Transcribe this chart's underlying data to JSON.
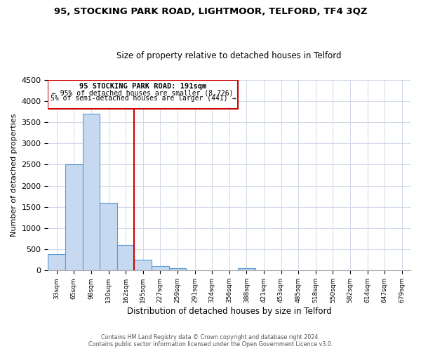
{
  "title": "95, STOCKING PARK ROAD, LIGHTMOOR, TELFORD, TF4 3QZ",
  "subtitle": "Size of property relative to detached houses in Telford",
  "xlabel": "Distribution of detached houses by size in Telford",
  "ylabel": "Number of detached properties",
  "bar_labels": [
    "33sqm",
    "65sqm",
    "98sqm",
    "130sqm",
    "162sqm",
    "195sqm",
    "227sqm",
    "259sqm",
    "291sqm",
    "324sqm",
    "356sqm",
    "388sqm",
    "421sqm",
    "453sqm",
    "485sqm",
    "518sqm",
    "550sqm",
    "582sqm",
    "614sqm",
    "647sqm",
    "679sqm"
  ],
  "bar_values": [
    380,
    2500,
    3700,
    1600,
    600,
    250,
    100,
    55,
    0,
    0,
    0,
    55,
    0,
    0,
    0,
    0,
    0,
    0,
    0,
    0,
    0
  ],
  "bar_color": "#c6d9f0",
  "bar_edge_color": "#5b9bd5",
  "vline_color": "#cc0000",
  "vline_position": 4.5,
  "annotation_title": "95 STOCKING PARK ROAD: 191sqm",
  "annotation_line1": "← 95% of detached houses are smaller (8,726)",
  "annotation_line2": "5% of semi-detached houses are larger (441) →",
  "ylim": [
    0,
    4500
  ],
  "yticks": [
    0,
    500,
    1000,
    1500,
    2000,
    2500,
    3000,
    3500,
    4000,
    4500
  ],
  "footer1": "Contains HM Land Registry data © Crown copyright and database right 2024.",
  "footer2": "Contains public sector information licensed under the Open Government Licence v3.0.",
  "background_color": "#ffffff",
  "grid_color": "#d0d8e8"
}
